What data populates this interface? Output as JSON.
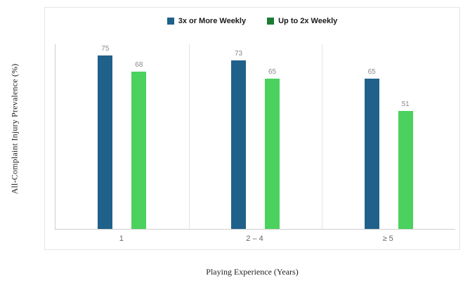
{
  "chart_data": {
    "type": "bar",
    "categories": [
      "1",
      "2 – 4",
      "≥ 5"
    ],
    "series": [
      {
        "name": "3x or More Weekly",
        "bar_color": "#20618b",
        "marker_color": "#20618b",
        "values": [
          75,
          73,
          65
        ]
      },
      {
        "name": "Up to 2x Weekly",
        "bar_color": "#4bd15e",
        "marker_color": "#1c7c34",
        "values": [
          68,
          65,
          51
        ]
      }
    ],
    "title": "",
    "xlabel": "Playing Experience (Years)",
    "ylabel": "All-Complaint Injury Prevalence (%)",
    "ylim": [
      0,
      80
    ],
    "grid": "category-separators-only",
    "legend_position": "top-center",
    "value_labels_shown": true,
    "value_label_color": "#8a8a8a",
    "axis_line_color": "#cfcfcf"
  }
}
